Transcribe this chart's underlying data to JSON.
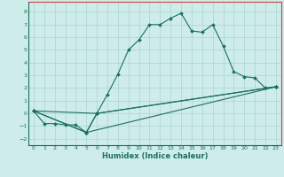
{
  "xlabel": "Humidex (Indice chaleur)",
  "bg_color": "#ceecea",
  "grid_color": "#aed8d4",
  "line_color": "#1a7060",
  "spine_color": "#cc4444",
  "xlim": [
    -0.5,
    23.5
  ],
  "ylim": [
    -2.5,
    8.8
  ],
  "xticks": [
    0,
    1,
    2,
    3,
    4,
    5,
    6,
    7,
    8,
    9,
    10,
    11,
    12,
    13,
    14,
    15,
    16,
    17,
    18,
    19,
    20,
    21,
    22,
    23
  ],
  "yticks": [
    -2,
    -1,
    0,
    1,
    2,
    3,
    4,
    5,
    6,
    7,
    8
  ],
  "line1_x": [
    0,
    1,
    2,
    3,
    4,
    5,
    6,
    7,
    8,
    9,
    10,
    11,
    12,
    13,
    14,
    15,
    16,
    17,
    18,
    19,
    20,
    21,
    22,
    23
  ],
  "line1_y": [
    0.2,
    -0.8,
    -0.8,
    -0.9,
    -0.9,
    -1.5,
    0.0,
    1.5,
    3.1,
    5.0,
    5.8,
    7.0,
    7.0,
    7.5,
    7.9,
    6.5,
    6.4,
    7.0,
    5.3,
    3.3,
    2.9,
    2.8,
    2.0,
    2.1
  ],
  "line2_x": [
    0,
    5,
    6,
    23
  ],
  "line2_y": [
    0.2,
    -1.5,
    0.0,
    2.1
  ],
  "line3_x": [
    0,
    5,
    23
  ],
  "line3_y": [
    0.2,
    -1.5,
    2.1
  ],
  "line4_x": [
    0,
    6,
    23
  ],
  "line4_y": [
    0.2,
    0.0,
    2.1
  ]
}
